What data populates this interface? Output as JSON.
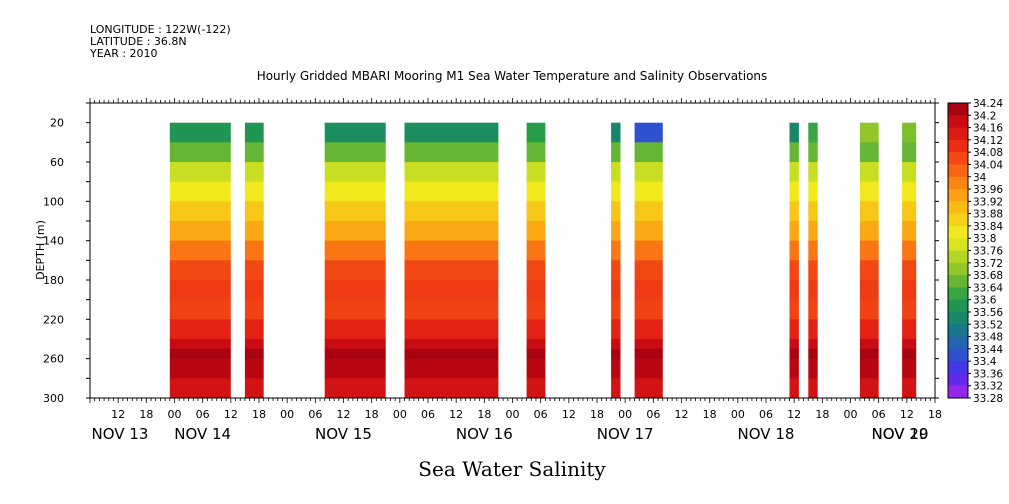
{
  "header": {
    "longitude": "LONGITUDE : 122W(-122)",
    "latitude": "LATITUDE : 36.8N",
    "year": "YEAR : 2010"
  },
  "chart_data": {
    "type": "heatmap",
    "title": "Hourly Gridded MBARI Mooring M1 Sea Water Temperature and Salinity Observations",
    "xlabel": "Sea Water Salinity",
    "ylabel": "DEPTH (m)",
    "y_axis": {
      "range": [
        300,
        0
      ],
      "inverted": true,
      "tick_labels": [
        "20",
        "60",
        "100",
        "140",
        "180",
        "220",
        "260",
        "300"
      ],
      "tick_values": [
        20,
        60,
        100,
        140,
        180,
        220,
        260,
        300
      ]
    },
    "x_axis": {
      "unit": "hour",
      "start": "NOV 13 06:00",
      "end": "NOV 20 18:00",
      "range_hours": [
        6,
        186
      ],
      "tick_labels": [
        "12",
        "18",
        "00",
        "06",
        "12",
        "18",
        "00",
        "06",
        "12",
        "18",
        "00",
        "06",
        "12",
        "18",
        "00",
        "06",
        "12",
        "18",
        "00",
        "06",
        "12",
        "18",
        "00",
        "06",
        "12",
        "18",
        "00",
        "06",
        "12",
        "18",
        "00",
        "06",
        "12"
      ],
      "tick_hours": [
        12,
        18,
        24,
        30,
        36,
        42,
        48,
        54,
        60,
        66,
        72,
        78,
        84,
        90,
        96,
        102,
        108,
        114,
        120,
        126,
        132,
        138,
        144,
        150,
        156,
        162,
        168,
        174,
        180,
        186,
        192,
        198,
        204
      ],
      "day_labels": [
        "NOV 13",
        "NOV 14",
        "NOV 15",
        "NOV 16",
        "NOV 17",
        "NOV 18",
        "NOV 19",
        "NOV 20"
      ],
      "day_hours": [
        6,
        30,
        60,
        90,
        120,
        150,
        180,
        204
      ]
    },
    "colorbar": {
      "labels": [
        "34.24",
        "34.2",
        "34.16",
        "34.12",
        "34.08",
        "34.04",
        "34",
        "33.96",
        "33.92",
        "33.88",
        "33.84",
        "33.8",
        "33.76",
        "33.72",
        "33.68",
        "33.64",
        "33.6",
        "33.56",
        "33.52",
        "33.48",
        "33.44",
        "33.4",
        "33.36",
        "33.32",
        "33.28"
      ],
      "min": 33.28,
      "max": 34.24,
      "step": 0.04
    },
    "depth_profile_typical": {
      "depth": [
        20,
        40,
        60,
        80,
        100,
        120,
        140,
        160,
        180,
        200,
        220,
        240,
        250,
        260,
        280,
        300
      ],
      "salinity": [
        33.58,
        33.66,
        33.76,
        33.82,
        33.88,
        33.93,
        34.0,
        34.06,
        34.08,
        34.07,
        34.12,
        34.18,
        34.22,
        34.2,
        34.16,
        34.14
      ]
    },
    "data_columns": [
      {
        "start_hour": 23,
        "end_hour": 36,
        "top_value": 33.58
      },
      {
        "start_hour": 39,
        "end_hour": 43,
        "top_value": 33.58
      },
      {
        "start_hour": 56,
        "end_hour": 69,
        "top_value": 33.56
      },
      {
        "start_hour": 73,
        "end_hour": 93,
        "top_value": 33.56
      },
      {
        "start_hour": 99,
        "end_hour": 103,
        "top_value": 33.6
      },
      {
        "start_hour": 117,
        "end_hour": 119,
        "top_value": 33.54
      },
      {
        "start_hour": 122,
        "end_hour": 128,
        "top_value": 33.42
      },
      {
        "start_hour": 155,
        "end_hour": 157,
        "top_value": 33.54
      },
      {
        "start_hour": 159,
        "end_hour": 161,
        "top_value": 33.62
      },
      {
        "start_hour": 170,
        "end_hour": 174,
        "top_value": 33.7
      },
      {
        "start_hour": 179,
        "end_hour": 182,
        "top_value": 33.68
      }
    ]
  }
}
